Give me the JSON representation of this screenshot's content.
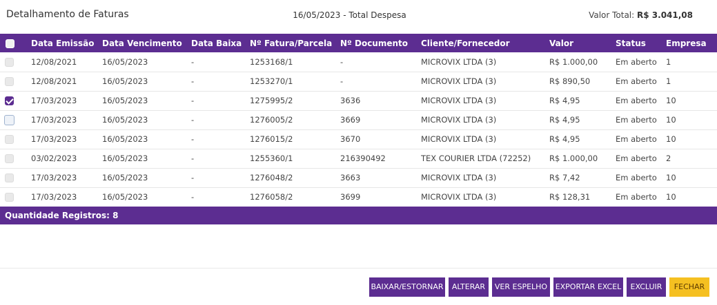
{
  "header": {
    "title": "Detalhamento de Faturas",
    "subtitle": "16/05/2023 - Total Despesa",
    "total_label": "Valor Total:",
    "total_value": "R$ 3.041,08"
  },
  "table": {
    "columns": [
      "Data Emissão",
      "Data Vencimento",
      "Data Baixa",
      "Nº Fatura/Parcela",
      "Nº Documento",
      "Cliente/Fornecedor",
      "Valor",
      "Status",
      "Empresa"
    ],
    "rows": [
      {
        "checked": false,
        "focused": false,
        "cells": [
          "12/08/2021",
          "16/05/2023",
          "-",
          "1253168/1",
          "-",
          "MICROVIX LTDA (3)",
          "R$ 1.000,00",
          "Em aberto",
          "1"
        ]
      },
      {
        "checked": false,
        "focused": false,
        "cells": [
          "12/08/2021",
          "16/05/2023",
          "-",
          "1253270/1",
          "-",
          "MICROVIX LTDA (3)",
          "R$ 890,50",
          "Em aberto",
          "1"
        ]
      },
      {
        "checked": true,
        "focused": false,
        "cells": [
          "17/03/2023",
          "16/05/2023",
          "-",
          "1275995/2",
          "3636",
          "MICROVIX LTDA (3)",
          "R$ 4,95",
          "Em aberto",
          "10"
        ]
      },
      {
        "checked": false,
        "focused": true,
        "cells": [
          "17/03/2023",
          "16/05/2023",
          "-",
          "1276005/2",
          "3669",
          "MICROVIX LTDA (3)",
          "R$ 4,95",
          "Em aberto",
          "10"
        ]
      },
      {
        "checked": false,
        "focused": false,
        "cells": [
          "17/03/2023",
          "16/05/2023",
          "-",
          "1276015/2",
          "3670",
          "MICROVIX LTDA (3)",
          "R$ 4,95",
          "Em aberto",
          "10"
        ]
      },
      {
        "checked": false,
        "focused": false,
        "cells": [
          "03/02/2023",
          "16/05/2023",
          "-",
          "1255360/1",
          "216390492",
          "TEX COURIER LTDA (72252)",
          "R$ 1.000,00",
          "Em aberto",
          "2"
        ]
      },
      {
        "checked": false,
        "focused": false,
        "cells": [
          "17/03/2023",
          "16/05/2023",
          "-",
          "1276048/2",
          "3663",
          "MICROVIX LTDA (3)",
          "R$ 7,42",
          "Em aberto",
          "10"
        ]
      },
      {
        "checked": false,
        "focused": false,
        "cells": [
          "17/03/2023",
          "16/05/2023",
          "-",
          "1276058/2",
          "3699",
          "MICROVIX LTDA (3)",
          "R$ 128,31",
          "Em aberto",
          "10"
        ]
      }
    ]
  },
  "footer": {
    "count_label": "Quantidade Registros: 8"
  },
  "buttons": {
    "baixar": "BAIXAR/ESTORNAR",
    "alterar": "ALTERAR",
    "espelho": "VER ESPELHO",
    "excel": "EXPORTAR EXCEL",
    "excluir": "EXCLUIR",
    "fechar": "FECHAR"
  },
  "colors": {
    "primary": "#5c2d91",
    "accent": "#f5c021"
  }
}
